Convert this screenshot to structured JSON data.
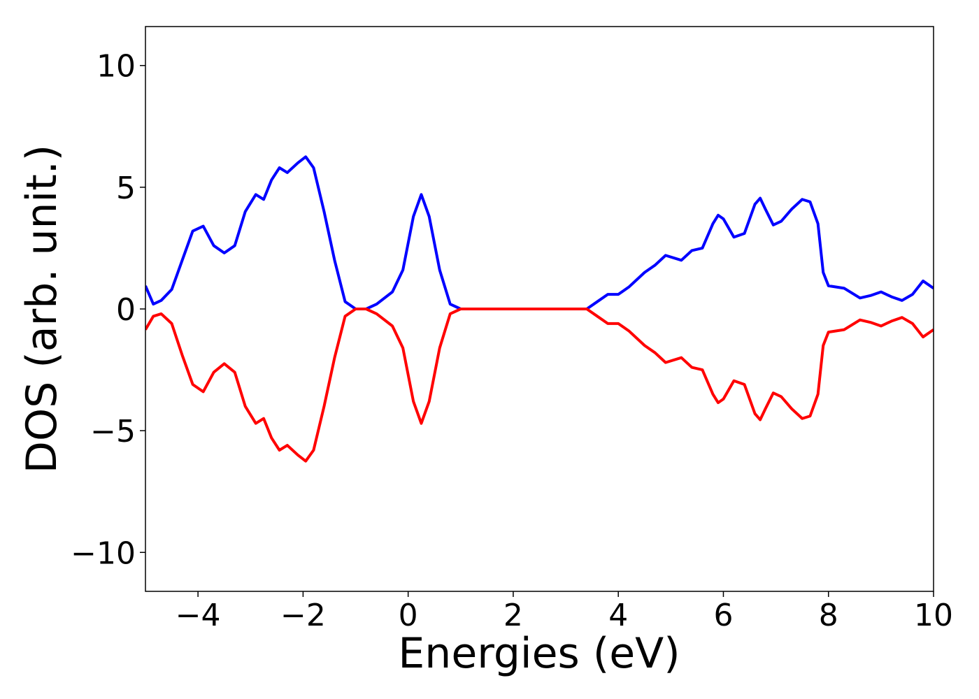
{
  "chart_data": {
    "type": "line",
    "xlabel": "Energies (eV)",
    "ylabel": "DOS (arb. unit.)",
    "x": [
      -5,
      -4.85,
      -4.7,
      -4.5,
      -4.3,
      -4.1,
      -3.9,
      -3.7,
      -3.5,
      -3.3,
      -3.1,
      -2.9,
      -2.75,
      -2.6,
      -2.45,
      -2.3,
      -2.1,
      -1.95,
      -1.8,
      -1.6,
      -1.4,
      -1.2,
      -1.0,
      -0.8,
      -0.6,
      -0.3,
      -0.1,
      0.1,
      0.25,
      0.4,
      0.6,
      0.8,
      1.0,
      3.4,
      3.6,
      3.8,
      4.0,
      4.2,
      4.5,
      4.7,
      4.9,
      5.2,
      5.4,
      5.6,
      5.8,
      5.9,
      6.0,
      6.2,
      6.4,
      6.6,
      6.7,
      6.8,
      6.95,
      7.1,
      7.3,
      7.5,
      7.65,
      7.8,
      7.9,
      8.0,
      8.3,
      8.6,
      8.8,
      9.0,
      9.2,
      9.4,
      9.6,
      9.8,
      10
    ],
    "series": [
      {
        "color": "#0000ff",
        "values": [
          0.95,
          0.2,
          0.35,
          0.8,
          2.0,
          3.2,
          3.4,
          2.6,
          2.3,
          2.6,
          4.0,
          4.7,
          4.5,
          5.3,
          5.8,
          5.6,
          6.0,
          6.25,
          5.8,
          4.0,
          2.0,
          0.3,
          0,
          0,
          0.2,
          0.7,
          1.6,
          3.8,
          4.7,
          3.8,
          1.6,
          0.2,
          0,
          0,
          0.3,
          0.6,
          0.6,
          0.9,
          1.5,
          1.8,
          2.2,
          2.0,
          2.4,
          2.5,
          3.5,
          3.85,
          3.7,
          2.95,
          3.1,
          4.3,
          4.55,
          4.1,
          3.45,
          3.6,
          4.1,
          4.5,
          4.4,
          3.5,
          1.5,
          0.95,
          0.85,
          0.45,
          0.55,
          0.7,
          0.5,
          0.35,
          0.6,
          1.15,
          0.85
        ]
      },
      {
        "color": "#ff0000",
        "values": [
          -0.85,
          -0.3,
          -0.2,
          -0.6,
          -1.9,
          -3.1,
          -3.4,
          -2.6,
          -2.25,
          -2.6,
          -4.0,
          -4.7,
          -4.5,
          -5.3,
          -5.8,
          -5.6,
          -6.0,
          -6.25,
          -5.8,
          -4.0,
          -2.0,
          -0.3,
          0,
          0,
          -0.2,
          -0.7,
          -1.6,
          -3.8,
          -4.7,
          -3.8,
          -1.6,
          -0.2,
          0,
          0,
          -0.3,
          -0.6,
          -0.6,
          -0.9,
          -1.5,
          -1.8,
          -2.2,
          -2.0,
          -2.4,
          -2.5,
          -3.5,
          -3.85,
          -3.7,
          -2.95,
          -3.1,
          -4.3,
          -4.55,
          -4.1,
          -3.45,
          -3.6,
          -4.1,
          -4.5,
          -4.4,
          -3.5,
          -1.5,
          -0.95,
          -0.85,
          -0.45,
          -0.55,
          -0.7,
          -0.5,
          -0.35,
          -0.6,
          -1.15,
          -0.85
        ]
      }
    ],
    "xlim": [
      -5,
      10
    ],
    "ylim": [
      -11.6,
      11.6
    ],
    "xticks": [
      {
        "value": -4,
        "label": "−4"
      },
      {
        "value": -2,
        "label": "−2"
      },
      0,
      2,
      4,
      6,
      8,
      10
    ],
    "yticks": [
      {
        "value": -10,
        "label": "−10"
      },
      {
        "value": -5,
        "label": "−5"
      },
      0,
      5,
      10
    ]
  }
}
